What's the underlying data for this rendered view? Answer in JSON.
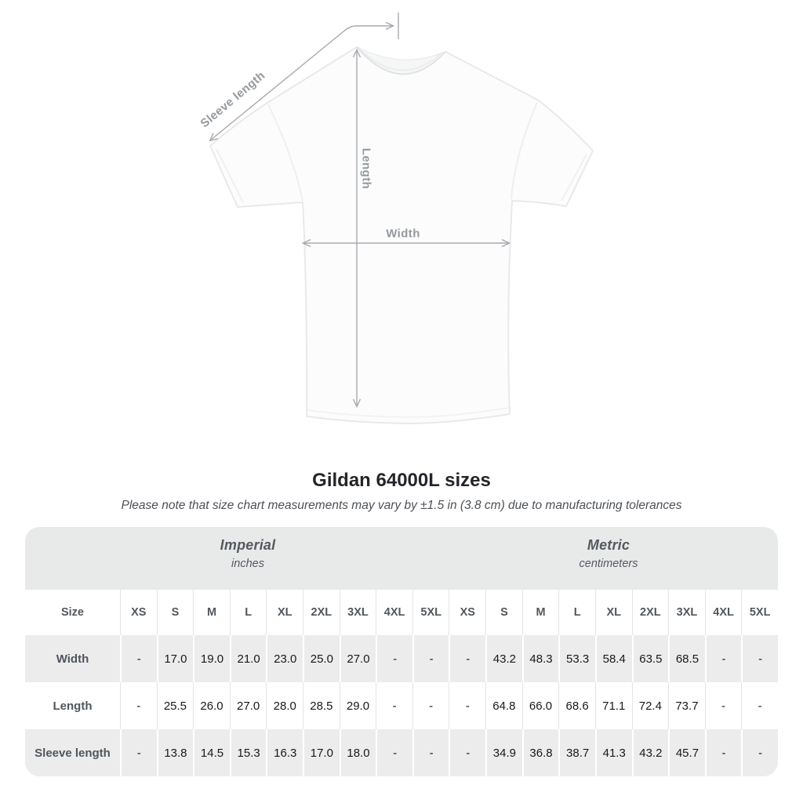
{
  "diagram": {
    "sleeve_length_label": "Sleeve length",
    "length_label": "Length",
    "width_label": "Width"
  },
  "header": {
    "title": "Gildan 64000L sizes",
    "note": "Please note that size chart measurements may vary by ±1.5 in (3.8 cm) due to manufacturing tolerances"
  },
  "chart_data": {
    "type": "table",
    "title": "Gildan 64000L sizes",
    "unit_sections": [
      {
        "label": "Imperial",
        "unit": "inches"
      },
      {
        "label": "Metric",
        "unit": "centimeters"
      }
    ],
    "size_column_header": "Size",
    "size_labels": [
      "XS",
      "S",
      "M",
      "L",
      "XL",
      "2XL",
      "3XL",
      "4XL",
      "5XL"
    ],
    "rows": [
      {
        "label": "Width",
        "imperial": [
          "-",
          "17.0",
          "19.0",
          "21.0",
          "23.0",
          "25.0",
          "27.0",
          "-",
          "-"
        ],
        "metric": [
          "-",
          "43.2",
          "48.3",
          "53.3",
          "58.4",
          "63.5",
          "68.5",
          "-",
          "-"
        ]
      },
      {
        "label": "Length",
        "imperial": [
          "-",
          "25.5",
          "26.0",
          "27.0",
          "28.0",
          "28.5",
          "29.0",
          "-",
          "-"
        ],
        "metric": [
          "-",
          "64.8",
          "66.0",
          "68.6",
          "71.1",
          "72.4",
          "73.7",
          "-",
          "-"
        ]
      },
      {
        "label": "Sleeve length",
        "imperial": [
          "-",
          "13.8",
          "14.5",
          "15.3",
          "16.3",
          "17.0",
          "18.0",
          "-",
          "-"
        ],
        "metric": [
          "-",
          "34.9",
          "36.8",
          "38.7",
          "41.3",
          "43.2",
          "45.7",
          "-",
          "-"
        ]
      }
    ]
  },
  "colors": {
    "annotation_gray": "#a6abaf",
    "label_gray": "#949a9f",
    "header_band": "#e8e9e9",
    "row_gray": "#ececec",
    "value_text": "#17191b",
    "heading_text": "#232629"
  }
}
